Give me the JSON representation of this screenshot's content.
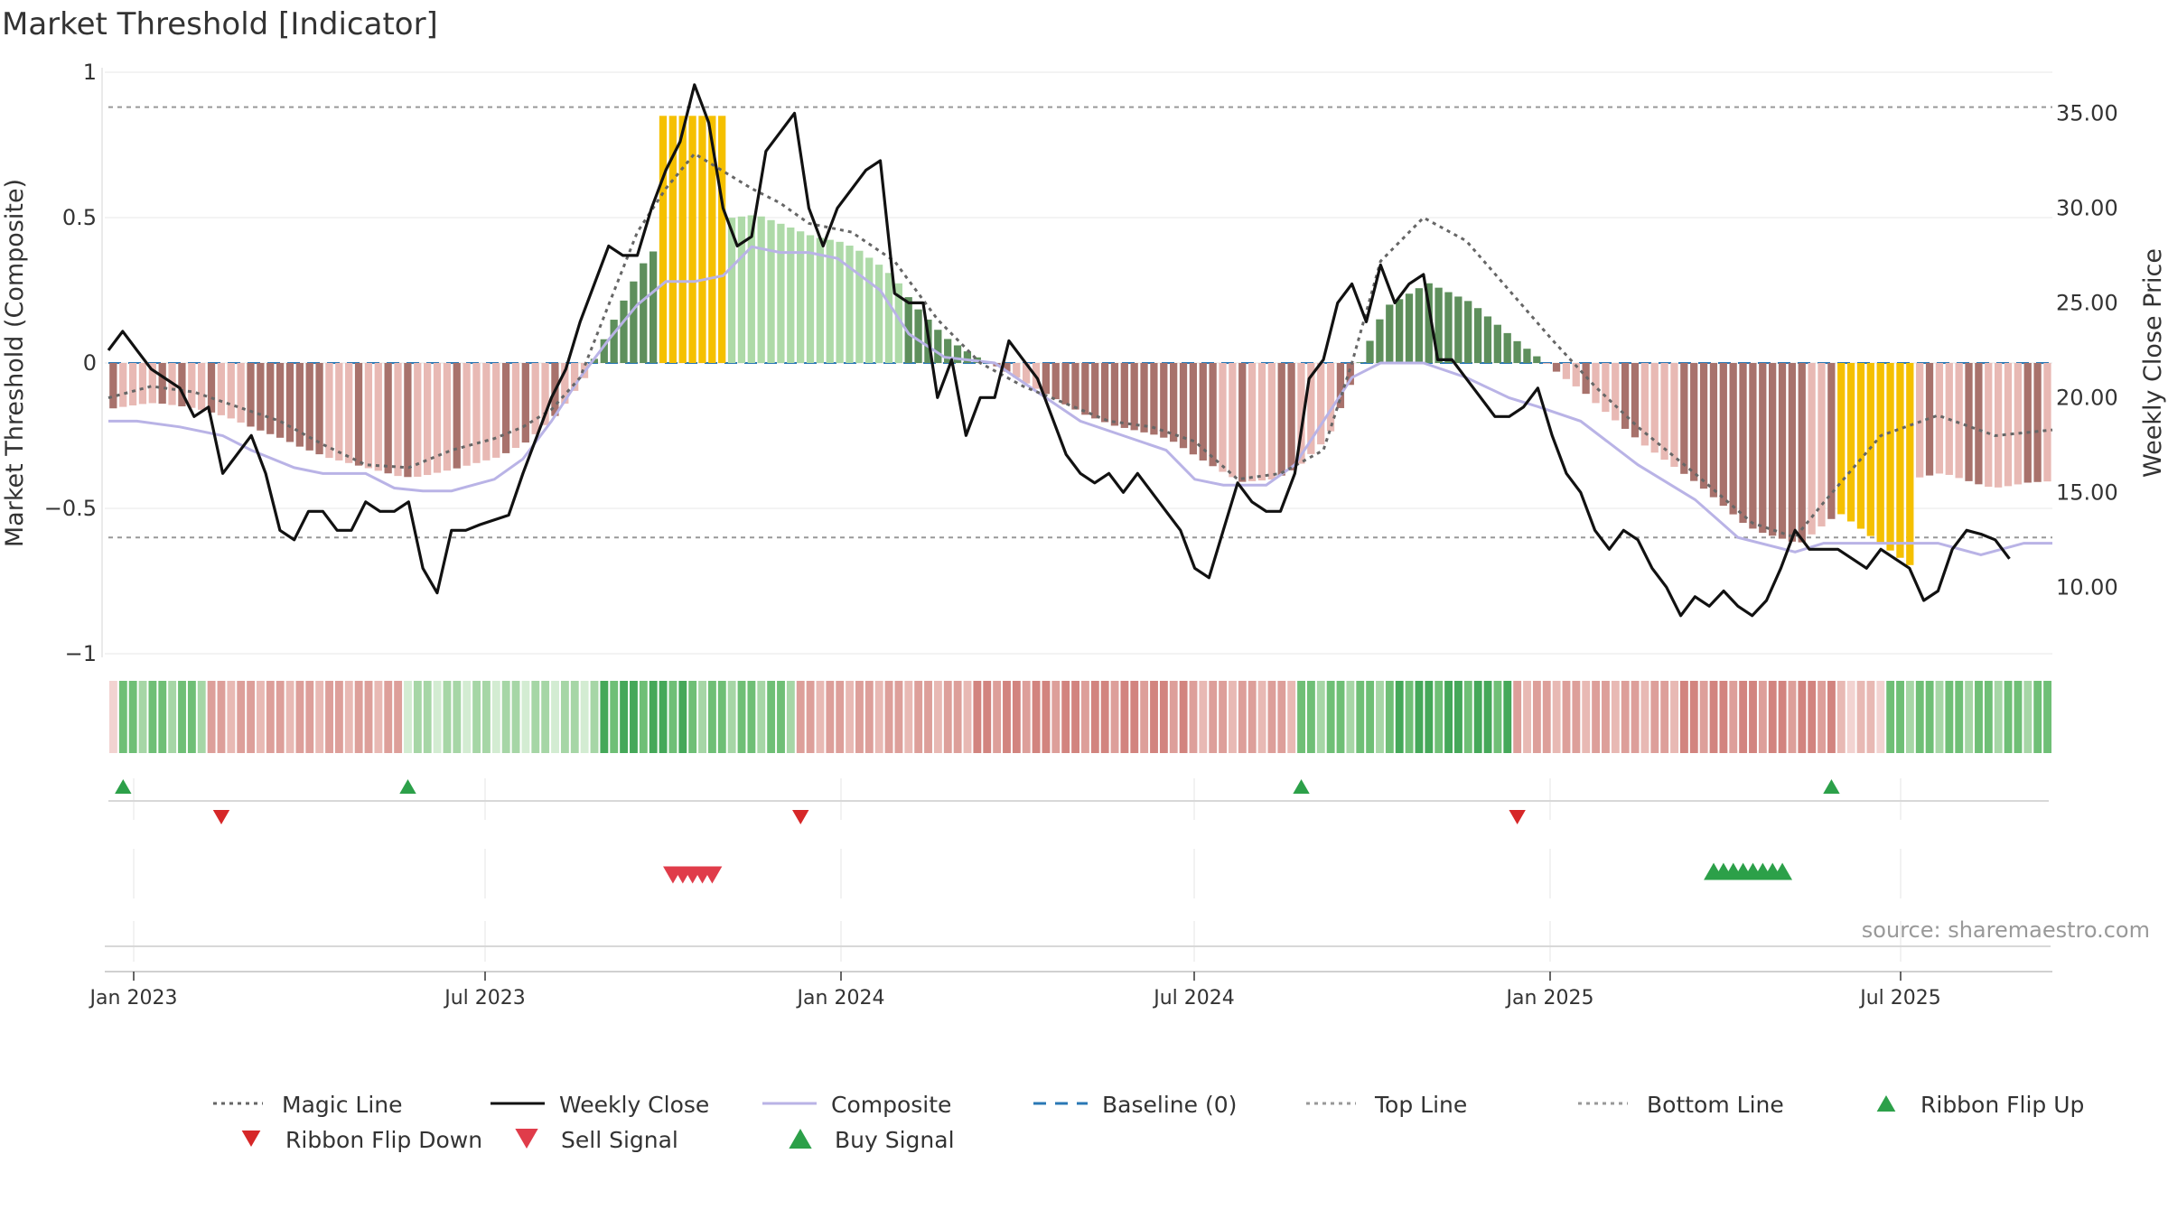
{
  "chart_data": {
    "type": "bar",
    "title": "Market Threshold [Indicator]",
    "ylabel": "Market Threshold (Composite)",
    "ylabel_right": "Weekly Close Price",
    "ylim": [
      -1,
      1
    ],
    "ylim_right": [
      6.3,
      37.4
    ],
    "y_ticks": [
      1,
      0.5,
      0,
      -0.5,
      -1
    ],
    "y_tick_labels": [
      "1",
      "0.5",
      "0",
      "−0.5",
      "−1"
    ],
    "y_ticks_right": [
      35,
      30,
      25,
      20,
      15,
      10
    ],
    "y_tick_labels_right": [
      "35.00",
      "30.00",
      "25.00",
      "20.00",
      "15.00",
      "10.00"
    ],
    "x_tick_weeks": [
      1,
      37,
      73,
      109,
      145,
      181
    ],
    "x_tick_labels": [
      "Jan 2023",
      "Jul 2023",
      "Jan 2024",
      "Jul 2024",
      "Jan 2025",
      "Jul 2025"
    ],
    "weeks": 198,
    "top_line": 0.88,
    "bottom_line": -0.6,
    "baseline": 0,
    "legend": {
      "position": "bottom",
      "entries": [
        {
          "label": "Magic Line",
          "style": "dotted",
          "color": "#666666"
        },
        {
          "label": "Weekly Close",
          "style": "solid",
          "color": "#111111"
        },
        {
          "label": "Composite",
          "style": "solid",
          "color": "#b9b3e6"
        },
        {
          "label": "Baseline (0)",
          "style": "dashed",
          "color": "#2a78b5"
        },
        {
          "label": "Top Line",
          "style": "dotted",
          "color": "#999999"
        },
        {
          "label": "Bottom Line",
          "style": "dotted",
          "color": "#999999"
        },
        {
          "label": "Ribbon Flip Up",
          "style": "triangle-up",
          "color": "#2ca049"
        },
        {
          "label": "Ribbon Flip Down",
          "style": "triangle-down",
          "color": "#d62728"
        },
        {
          "label": "Sell Signal",
          "style": "triangle-down",
          "color": "#e03c4a"
        },
        {
          "label": "Buy Signal",
          "style": "triangle-up",
          "color": "#2ca049"
        }
      ]
    },
    "source": "source: sharemaestro.com",
    "bar_segments": [
      {
        "from": 0,
        "to": 45,
        "kind": "neg"
      },
      {
        "from": 46,
        "to": 62,
        "kind": "pos"
      },
      {
        "from": 56,
        "to": 62,
        "kind": "peak"
      },
      {
        "from": 63,
        "to": 80,
        "kind": "posfade"
      },
      {
        "from": 81,
        "to": 136,
        "kind": "neg"
      },
      {
        "from": 137,
        "to": 158,
        "kind": "pos"
      },
      {
        "from": 159,
        "to": 198,
        "kind": "neg"
      },
      {
        "from": 176,
        "to": 183,
        "kind": "trough"
      }
    ],
    "series": [
      {
        "name": "Composite",
        "points": [
          [
            0,
            -0.2
          ],
          [
            4,
            -0.2
          ],
          [
            10,
            -0.22
          ],
          [
            16,
            -0.25
          ],
          [
            20,
            -0.3
          ],
          [
            26,
            -0.36
          ],
          [
            30,
            -0.38
          ],
          [
            36,
            -0.38
          ],
          [
            40,
            -0.43
          ],
          [
            44,
            -0.44
          ],
          [
            48,
            -0.44
          ],
          [
            54,
            -0.4
          ],
          [
            58,
            -0.33
          ],
          [
            62,
            -0.2
          ],
          [
            66,
            -0.05
          ],
          [
            70,
            0.08
          ],
          [
            74,
            0.2
          ],
          [
            78,
            0.28
          ],
          [
            82,
            0.28
          ],
          [
            86,
            0.3
          ],
          [
            90,
            0.4
          ],
          [
            94,
            0.38
          ],
          [
            98,
            0.38
          ],
          [
            102,
            0.36
          ],
          [
            108,
            0.25
          ],
          [
            112,
            0.1
          ],
          [
            117,
            0.02
          ],
          [
            124,
            0
          ],
          [
            130,
            -0.1
          ],
          [
            136,
            -0.2
          ],
          [
            142,
            -0.25
          ],
          [
            148,
            -0.3
          ],
          [
            152,
            -0.4
          ],
          [
            156,
            -0.42
          ],
          [
            162,
            -0.42
          ],
          [
            166,
            -0.35
          ],
          [
            170,
            -0.2
          ],
          [
            174,
            -0.05
          ],
          [
            178,
            0
          ],
          [
            184,
            0
          ],
          [
            190,
            -0.05
          ],
          [
            196,
            -0.12
          ],
          [
            200,
            -0.15
          ],
          [
            206,
            -0.2
          ],
          [
            214,
            -0.35
          ],
          [
            222,
            -0.47
          ],
          [
            228,
            -0.6
          ],
          [
            236,
            -0.65
          ],
          [
            240,
            -0.62
          ],
          [
            256,
            -0.62
          ],
          [
            262,
            -0.66
          ],
          [
            268,
            -0.62
          ],
          [
            272,
            -0.62
          ]
        ]
      },
      {
        "name": "Magic Line",
        "points": [
          [
            0,
            -0.12
          ],
          [
            6,
            -0.08
          ],
          [
            12,
            -0.1
          ],
          [
            18,
            -0.15
          ],
          [
            24,
            -0.2
          ],
          [
            30,
            -0.28
          ],
          [
            36,
            -0.35
          ],
          [
            42,
            -0.36
          ],
          [
            48,
            -0.3
          ],
          [
            54,
            -0.26
          ],
          [
            58,
            -0.22
          ],
          [
            62,
            -0.16
          ],
          [
            66,
            -0.05
          ],
          [
            70,
            0.2
          ],
          [
            74,
            0.45
          ],
          [
            78,
            0.6
          ],
          [
            82,
            0.72
          ],
          [
            86,
            0.66
          ],
          [
            90,
            0.6
          ],
          [
            94,
            0.55
          ],
          [
            98,
            0.48
          ],
          [
            104,
            0.45
          ],
          [
            110,
            0.35
          ],
          [
            116,
            0.15
          ],
          [
            122,
            0
          ],
          [
            128,
            -0.08
          ],
          [
            134,
            -0.14
          ],
          [
            140,
            -0.2
          ],
          [
            146,
            -0.22
          ],
          [
            152,
            -0.27
          ],
          [
            158,
            -0.4
          ],
          [
            164,
            -0.38
          ],
          [
            170,
            -0.3
          ],
          [
            174,
            0
          ],
          [
            178,
            0.35
          ],
          [
            184,
            0.5
          ],
          [
            190,
            0.42
          ],
          [
            196,
            0.25
          ],
          [
            202,
            0.08
          ],
          [
            208,
            -0.08
          ],
          [
            214,
            -0.22
          ],
          [
            222,
            -0.38
          ],
          [
            230,
            -0.55
          ],
          [
            236,
            -0.6
          ],
          [
            240,
            -0.48
          ],
          [
            248,
            -0.25
          ],
          [
            256,
            -0.18
          ],
          [
            264,
            -0.25
          ],
          [
            272,
            -0.23
          ]
        ]
      }
    ],
    "weekly_close": [
      [
        0,
        22.5
      ],
      [
        2,
        23.5
      ],
      [
        4,
        22.5
      ],
      [
        6,
        21.5
      ],
      [
        8,
        21
      ],
      [
        10,
        20.5
      ],
      [
        12,
        19
      ],
      [
        14,
        19.5
      ],
      [
        16,
        16
      ],
      [
        18,
        17
      ],
      [
        20,
        18
      ],
      [
        22,
        16
      ],
      [
        24,
        13
      ],
      [
        26,
        12.5
      ],
      [
        28,
        14
      ],
      [
        30,
        14
      ],
      [
        32,
        13
      ],
      [
        34,
        13
      ],
      [
        36,
        14.5
      ],
      [
        38,
        14
      ],
      [
        40,
        14
      ],
      [
        42,
        14.5
      ],
      [
        44,
        11
      ],
      [
        46,
        9.7
      ],
      [
        48,
        13
      ],
      [
        50,
        13
      ],
      [
        52,
        13.3
      ],
      [
        56,
        13.8
      ],
      [
        58,
        16
      ],
      [
        60,
        18
      ],
      [
        62,
        20
      ],
      [
        64,
        21.5
      ],
      [
        66,
        24
      ],
      [
        68,
        26
      ],
      [
        70,
        28
      ],
      [
        72,
        27.5
      ],
      [
        74,
        27.5
      ],
      [
        76,
        30
      ],
      [
        78,
        32
      ],
      [
        80,
        33.5
      ],
      [
        82,
        36.5
      ],
      [
        84,
        34.5
      ],
      [
        86,
        30
      ],
      [
        88,
        28
      ],
      [
        90,
        28.5
      ],
      [
        92,
        33
      ],
      [
        94,
        34
      ],
      [
        96,
        35
      ],
      [
        98,
        30
      ],
      [
        100,
        28
      ],
      [
        102,
        30
      ],
      [
        104,
        31
      ],
      [
        106,
        32
      ],
      [
        108,
        32.5
      ],
      [
        110,
        25.5
      ],
      [
        112,
        25
      ],
      [
        114,
        25
      ],
      [
        116,
        20
      ],
      [
        118,
        22
      ],
      [
        120,
        18
      ],
      [
        122,
        20
      ],
      [
        124,
        20
      ],
      [
        126,
        23
      ],
      [
        128,
        22
      ],
      [
        130,
        21
      ],
      [
        132,
        19
      ],
      [
        134,
        17
      ],
      [
        136,
        16
      ],
      [
        138,
        15.5
      ],
      [
        140,
        16
      ],
      [
        142,
        15
      ],
      [
        144,
        16
      ],
      [
        146,
        15
      ],
      [
        148,
        14
      ],
      [
        150,
        13
      ],
      [
        152,
        11
      ],
      [
        154,
        10.5
      ],
      [
        156,
        13
      ],
      [
        158,
        15.5
      ],
      [
        160,
        14.5
      ],
      [
        162,
        14
      ],
      [
        164,
        14
      ],
      [
        166,
        16
      ],
      [
        168,
        21
      ],
      [
        170,
        22
      ],
      [
        172,
        25
      ],
      [
        174,
        26
      ],
      [
        176,
        24
      ],
      [
        178,
        27
      ],
      [
        180,
        25
      ],
      [
        182,
        26
      ],
      [
        184,
        26.5
      ],
      [
        186,
        22
      ],
      [
        188,
        22
      ],
      [
        190,
        21
      ],
      [
        192,
        20
      ],
      [
        194,
        19
      ],
      [
        196,
        19
      ],
      [
        198,
        19.5
      ],
      [
        200,
        20.5
      ],
      [
        202,
        18
      ],
      [
        204,
        16
      ],
      [
        206,
        15
      ],
      [
        208,
        13
      ],
      [
        210,
        12
      ],
      [
        212,
        13
      ],
      [
        214,
        12.5
      ],
      [
        216,
        11
      ],
      [
        218,
        10
      ],
      [
        220,
        8.5
      ],
      [
        222,
        9.5
      ],
      [
        224,
        9
      ],
      [
        226,
        9.8
      ],
      [
        228,
        9
      ],
      [
        230,
        8.5
      ],
      [
        232,
        9.3
      ],
      [
        234,
        11
      ],
      [
        236,
        13
      ],
      [
        238,
        12
      ],
      [
        240,
        12
      ],
      [
        242,
        12
      ],
      [
        244,
        11.5
      ],
      [
        246,
        11
      ],
      [
        248,
        12
      ],
      [
        250,
        11.5
      ],
      [
        252,
        11
      ],
      [
        254,
        9.3
      ],
      [
        256,
        9.8
      ],
      [
        258,
        12
      ],
      [
        260,
        13
      ],
      [
        262,
        12.8
      ],
      [
        264,
        12.5
      ],
      [
        266,
        11.5
      ]
    ],
    "ribbon": {
      "cells": 198,
      "segments": [
        {
          "from": 0,
          "to": 1,
          "tone": "red",
          "level": 1
        },
        {
          "from": 1,
          "to": 10,
          "tone": "green",
          "level": 2
        },
        {
          "from": 10,
          "to": 30,
          "tone": "red",
          "level": 2
        },
        {
          "from": 30,
          "to": 50,
          "tone": "green",
          "level": 1
        },
        {
          "from": 50,
          "to": 59,
          "tone": "green",
          "level": 3
        },
        {
          "from": 59,
          "to": 70,
          "tone": "green",
          "level": 2
        },
        {
          "from": 70,
          "to": 88,
          "tone": "red",
          "level": 2
        },
        {
          "from": 88,
          "to": 110,
          "tone": "red",
          "level": 3
        },
        {
          "from": 110,
          "to": 121,
          "tone": "red",
          "level": 2
        },
        {
          "from": 121,
          "to": 131,
          "tone": "green",
          "level": 2
        },
        {
          "from": 131,
          "to": 143,
          "tone": "green",
          "level": 3
        },
        {
          "from": 143,
          "to": 160,
          "tone": "red",
          "level": 2
        },
        {
          "from": 160,
          "to": 176,
          "tone": "red",
          "level": 3
        },
        {
          "from": 176,
          "to": 181,
          "tone": "red",
          "level": 1
        },
        {
          "from": 181,
          "to": 198,
          "tone": "green",
          "level": 2
        }
      ]
    },
    "ribbon_flips_up": [
      1,
      30,
      121,
      175
    ],
    "ribbon_flips_down": [
      11,
      70,
      143
    ],
    "sell_signals": [
      57,
      58,
      59,
      60,
      61
    ],
    "buy_signals": [
      163,
      164,
      165,
      166,
      167,
      168,
      169,
      170
    ]
  }
}
